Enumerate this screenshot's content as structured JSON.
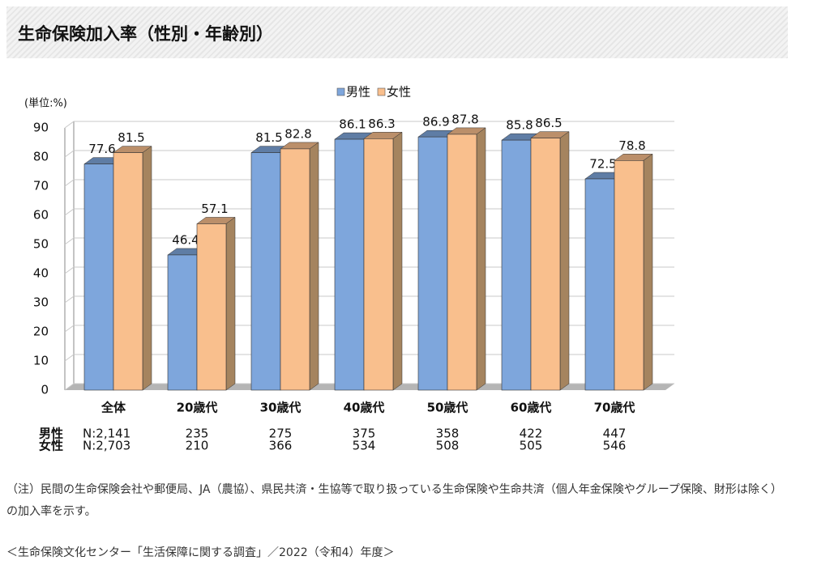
{
  "header": {
    "title": "生命保険加入率（性別・年齢別）"
  },
  "chart_data": {
    "type": "bar3d",
    "unit_label": "(単位:%)",
    "categories": [
      "全体",
      "20歳代",
      "30歳代",
      "40歳代",
      "50歳代",
      "60歳代",
      "70歳代"
    ],
    "series": [
      {
        "name": "男性",
        "color": "#7ea6dc",
        "values": [
          77.6,
          46.4,
          81.5,
          86.1,
          86.9,
          85.8,
          72.5
        ]
      },
      {
        "name": "女性",
        "color": "#f9bf8d",
        "values": [
          81.5,
          57.1,
          82.8,
          86.3,
          87.8,
          86.5,
          78.8
        ]
      }
    ],
    "ylim": [
      0,
      90
    ],
    "yticks": [
      0,
      10,
      20,
      30,
      40,
      50,
      60,
      70,
      80,
      90
    ],
    "grid": true,
    "legend": "top",
    "sample_sizes": [
      {
        "label": "男性",
        "values": [
          "N:2,141",
          "235",
          "275",
          "375",
          "358",
          "422",
          "447"
        ]
      },
      {
        "label": "女性",
        "values": [
          "N:2,703",
          "210",
          "366",
          "534",
          "508",
          "505",
          "546"
        ]
      }
    ]
  },
  "note": "（注）民間の生命保険会社や郵便局、JA（農協）、県民共済・生協等で取り扱っている生命保険や生命共済（個人年金保険やグループ保険、財形は除く）の加入率を示す。",
  "source": "＜生命保険文化センター「生活保障に関する調査」／2022（令和4）年度＞"
}
